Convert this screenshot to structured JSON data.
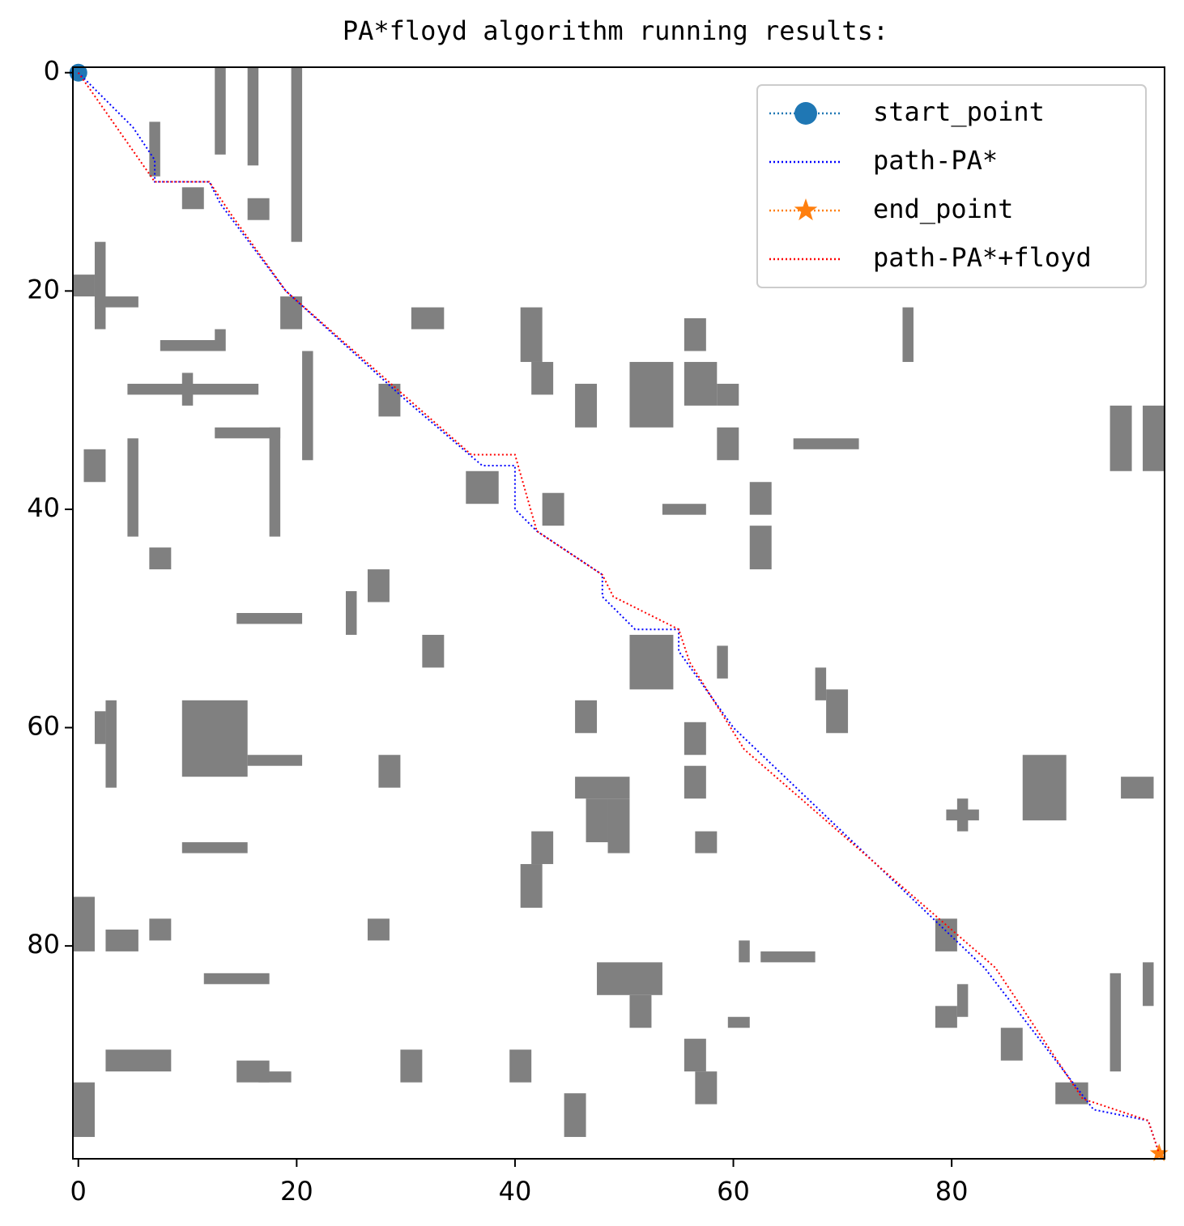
{
  "chart_data": {
    "type": "grid-path",
    "title": "PA*floyd algorithm running results:",
    "xlim": [
      -0.5,
      99.5
    ],
    "ylim": [
      99.5,
      -0.5
    ],
    "xticks": [
      0,
      20,
      40,
      60,
      80
    ],
    "yticks": [
      0,
      20,
      40,
      60,
      80
    ],
    "legend": "upper right",
    "obstacle_color": "#808080",
    "obstacles": [
      [
        13,
        0,
        1,
        8
      ],
      [
        16,
        0,
        1,
        9
      ],
      [
        20,
        0,
        1,
        16
      ],
      [
        7,
        5,
        1,
        5
      ],
      [
        10,
        11,
        2,
        2
      ],
      [
        16,
        12,
        2,
        2
      ],
      [
        2,
        16,
        1,
        8
      ],
      [
        0,
        19,
        2,
        2
      ],
      [
        2,
        21,
        4,
        1
      ],
      [
        19,
        21,
        2,
        3
      ],
      [
        8,
        25,
        6,
        1
      ],
      [
        13,
        24,
        1,
        1
      ],
      [
        5,
        29,
        12,
        1
      ],
      [
        10,
        28,
        1,
        3
      ],
      [
        28,
        29,
        2,
        3
      ],
      [
        21,
        26,
        1,
        10
      ],
      [
        13,
        33,
        6,
        1
      ],
      [
        18,
        33,
        1,
        10
      ],
      [
        1,
        35,
        2,
        3
      ],
      [
        5,
        34,
        1,
        9
      ],
      [
        36,
        37,
        3,
        3
      ],
      [
        31,
        22,
        3,
        2
      ],
      [
        41,
        22,
        2,
        5
      ],
      [
        42,
        27,
        2,
        3
      ],
      [
        46,
        29,
        2,
        4
      ],
      [
        51,
        27,
        4,
        6
      ],
      [
        56,
        23,
        2,
        3
      ],
      [
        56,
        27,
        3,
        4
      ],
      [
        59,
        29,
        2,
        2
      ],
      [
        59,
        33,
        2,
        3
      ],
      [
        66,
        34,
        6,
        1
      ],
      [
        62,
        38,
        2,
        3
      ],
      [
        54,
        40,
        4,
        1
      ],
      [
        43,
        39,
        2,
        3
      ],
      [
        62,
        42,
        2,
        4
      ],
      [
        76,
        22,
        1,
        5
      ],
      [
        95,
        31,
        2,
        6
      ],
      [
        98,
        31,
        2,
        6
      ],
      [
        7,
        44,
        2,
        2
      ],
      [
        27,
        46,
        2,
        3
      ],
      [
        25,
        48,
        1,
        4
      ],
      [
        15,
        50,
        6,
        1
      ],
      [
        32,
        52,
        2,
        3
      ],
      [
        51,
        52,
        4,
        5
      ],
      [
        59,
        53,
        1,
        3
      ],
      [
        68,
        55,
        1,
        3
      ],
      [
        3,
        58,
        1,
        8
      ],
      [
        2,
        59,
        1,
        3
      ],
      [
        10,
        58,
        6,
        7
      ],
      [
        16,
        63,
        5,
        1
      ],
      [
        28,
        63,
        2,
        3
      ],
      [
        46,
        65,
        5,
        2
      ],
      [
        47,
        67,
        2,
        4
      ],
      [
        49,
        67,
        2,
        5
      ],
      [
        46,
        58,
        2,
        3
      ],
      [
        56,
        60,
        2,
        3
      ],
      [
        56,
        64,
        2,
        3
      ],
      [
        69,
        57,
        2,
        4
      ],
      [
        87,
        63,
        4,
        6
      ],
      [
        96,
        65,
        3,
        2
      ],
      [
        80,
        68,
        3,
        1
      ],
      [
        81,
        67,
        1,
        3
      ],
      [
        10,
        71,
        6,
        1
      ],
      [
        42,
        70,
        2,
        3
      ],
      [
        41,
        73,
        2,
        4
      ],
      [
        57,
        70,
        2,
        2
      ],
      [
        0,
        76,
        2,
        5
      ],
      [
        3,
        79,
        3,
        2
      ],
      [
        7,
        78,
        2,
        2
      ],
      [
        27,
        78,
        2,
        2
      ],
      [
        48,
        82,
        6,
        3
      ],
      [
        51,
        85,
        2,
        3
      ],
      [
        63,
        81,
        5,
        1
      ],
      [
        61,
        80,
        1,
        2
      ],
      [
        79,
        78,
        2,
        3
      ],
      [
        12,
        83,
        6,
        1
      ],
      [
        3,
        90,
        6,
        2
      ],
      [
        0,
        93,
        2,
        5
      ],
      [
        45,
        94,
        2,
        4
      ],
      [
        30,
        90,
        2,
        3
      ],
      [
        40,
        90,
        2,
        3
      ],
      [
        56,
        89,
        2,
        3
      ],
      [
        57,
        92,
        2,
        3
      ],
      [
        60,
        87,
        2,
        1
      ],
      [
        81,
        84,
        1,
        3
      ],
      [
        79,
        86,
        2,
        2
      ],
      [
        85,
        88,
        2,
        3
      ],
      [
        95,
        83,
        1,
        9
      ],
      [
        98,
        82,
        1,
        4
      ],
      [
        90,
        93,
        3,
        2
      ],
      [
        15,
        91,
        3,
        2
      ],
      [
        17,
        92,
        3,
        1
      ]
    ],
    "series": [
      {
        "name": "start_point",
        "color": "#1f77b4",
        "marker": "circle",
        "x": [
          0
        ],
        "y": [
          0
        ]
      },
      {
        "name": "path-PA*",
        "color": "#0000ff",
        "x": [
          0,
          5,
          7,
          7,
          12,
          13,
          19,
          30,
          37,
          40,
          40,
          42,
          48,
          48,
          51,
          55,
          55,
          60,
          83,
          93,
          98,
          99
        ],
        "y": [
          0,
          5,
          8,
          10,
          10,
          12,
          20,
          30,
          36,
          36,
          40,
          42,
          46,
          48,
          51,
          51,
          53,
          60,
          82,
          95,
          96,
          99
        ]
      },
      {
        "name": "end_point",
        "color": "#ff7f0e",
        "marker": "star",
        "x": [
          99
        ],
        "y": [
          99
        ]
      },
      {
        "name": "path-PA*+floyd",
        "color": "#ff0000",
        "x": [
          0,
          7,
          12,
          14,
          19,
          36,
          40,
          42,
          48,
          49,
          55,
          56,
          61,
          84,
          92,
          98,
          99
        ],
        "y": [
          0,
          10,
          10,
          13,
          20,
          35,
          35,
          42,
          46,
          48,
          51,
          54,
          62,
          82,
          94,
          96,
          99
        ]
      }
    ]
  }
}
